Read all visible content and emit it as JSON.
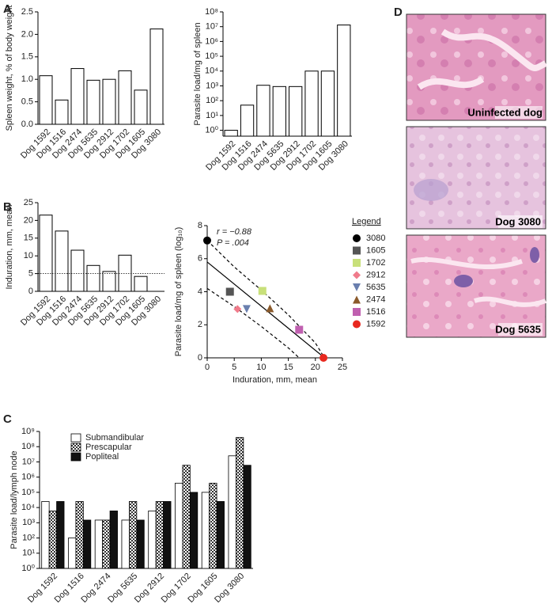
{
  "panel_labels": [
    "A",
    "B",
    "C",
    "D"
  ],
  "images": [
    {
      "caption": "Uninfected  dog"
    },
    {
      "caption": "Dog 3080"
    },
    {
      "caption": "Dog 5635"
    }
  ],
  "chart_data": [
    {
      "type": "bar",
      "ylabel": "Spleen weight, % of body weight",
      "categories": [
        "Dog 1592",
        "Dog 1516",
        "Dog 2474",
        "Dog 5635",
        "Dog 2912",
        "Dog 1702",
        "Dog 1605",
        "Dog 3080"
      ],
      "values": [
        1.08,
        0.54,
        1.24,
        0.98,
        1.0,
        1.19,
        0.76,
        2.12
      ],
      "color": "#ffffff",
      "ylim": [
        0,
        2.5
      ],
      "yticks": [
        {
          "value": 0,
          "label": "0.0"
        },
        0.5,
        {
          "value": 1,
          "label": "1.0"
        },
        1.5,
        {
          "value": 2,
          "label": "2.0"
        },
        2.5
      ]
    },
    {
      "type": "bar",
      "ylabel": "Parasite load/mg of spleen",
      "ylog": true,
      "categories": [
        "Dog 1592",
        "Dog 1516",
        "Dog 2474",
        "Dog 5635",
        "Dog 2912",
        "Dog 1702",
        "Dog 1605",
        "Dog 3080"
      ],
      "values": [
        1,
        50,
        1100,
        900,
        900,
        10000,
        10000,
        13000000
      ],
      "color": "#ffffff",
      "ylim": [
        0.4,
        100000000
      ],
      "yticks": [
        {
          "value": 1,
          "label": "10⁰"
        },
        {
          "value": 10,
          "label": "10¹"
        },
        {
          "value": 100,
          "label": "10²"
        },
        {
          "value": 1000,
          "label": "10³"
        },
        {
          "value": 10000,
          "label": "10⁴"
        },
        {
          "value": 100000,
          "label": "10⁵"
        },
        {
          "value": 1000000,
          "label": "10⁶"
        },
        {
          "value": 10000000,
          "label": "10⁷"
        },
        {
          "value": 100000000,
          "label": "10⁸"
        }
      ]
    },
    {
      "type": "bar",
      "ylabel": "Induration, mm, mean",
      "categories": [
        "Dog 1592",
        "Dog 1516",
        "Dog 2474",
        "Dog 5635",
        "Dog 2912",
        "Dog 1702",
        "Dog 1605",
        "Dog 3080"
      ],
      "values": [
        21.5,
        17,
        11.6,
        7.3,
        5.6,
        10.2,
        4.2,
        0
      ],
      "color": "#ffffff",
      "ylim": [
        0,
        25
      ],
      "yticks": [
        0,
        5,
        10,
        15,
        20,
        25
      ],
      "reference_line": 5
    },
    {
      "type": "scatter",
      "ylabel": "Parasite load/mg of spleen (log₁₀)",
      "xlabel": "Induration, mm, mean",
      "legend_title": "Legend",
      "annotations": [
        "r = −0.88",
        "P = .004"
      ],
      "xlim": [
        0,
        25
      ],
      "xticks": [
        0,
        5,
        10,
        15,
        20,
        25
      ],
      "ylim": [
        0,
        8
      ],
      "yticks": [
        0,
        2,
        4,
        6,
        8
      ],
      "series": [
        {
          "name": "3080",
          "color": "#000000",
          "marker": "circle",
          "x": [
            0
          ],
          "values": [
            7.1
          ]
        },
        {
          "name": "1605",
          "color": "#555555",
          "marker": "square",
          "x": [
            4.2
          ],
          "values": [
            4.0
          ]
        },
        {
          "name": "1702",
          "color": "#c8e07a",
          "marker": "square",
          "x": [
            10.2
          ],
          "values": [
            4.05
          ]
        },
        {
          "name": "2912",
          "color": "#f07b8b",
          "marker": "diamond",
          "x": [
            5.6
          ],
          "values": [
            2.95
          ]
        },
        {
          "name": "5635",
          "color": "#6a7fae",
          "marker": "triangle-down",
          "x": [
            7.3
          ],
          "values": [
            2.95
          ]
        },
        {
          "name": "2474",
          "color": "#8b5a2b",
          "marker": "triangle-up",
          "x": [
            11.6
          ],
          "values": [
            3.0
          ]
        },
        {
          "name": "1516",
          "color": "#c060b0",
          "marker": "square",
          "x": [
            17
          ],
          "values": [
            1.7
          ]
        },
        {
          "name": "1592",
          "color": "#e8281f",
          "marker": "circle",
          "x": [
            21.5
          ],
          "values": [
            0
          ]
        }
      ],
      "lines": [
        {
          "style": "solid",
          "x": [
            0,
            21.7
          ],
          "values": [
            5.8,
            0
          ]
        },
        {
          "style": "dashed",
          "x": [
            0,
            5,
            10,
            15,
            20,
            21.3
          ],
          "values": [
            7.1,
            5.5,
            4.1,
            2.6,
            0.9,
            0.2
          ]
        },
        {
          "style": "dashed",
          "x": [
            0,
            5,
            10,
            15,
            17
          ],
          "values": [
            4.2,
            3.1,
            1.9,
            0.6,
            0
          ]
        }
      ]
    },
    {
      "type": "bar",
      "ylabel": "Parasite load/lymph node",
      "ylog": true,
      "categories": [
        "Dog 1592",
        "Dog 1516",
        "Dog 2474",
        "Dog 5635",
        "Dog 2912",
        "Dog 1702",
        "Dog 1605",
        "Dog 3080"
      ],
      "ylim": [
        1,
        1000000000
      ],
      "yticks": [
        {
          "value": 1,
          "label": "10⁰"
        },
        {
          "value": 10,
          "label": "10¹"
        },
        {
          "value": 100,
          "label": "10²"
        },
        {
          "value": 1000,
          "label": "10³"
        },
        {
          "value": 10000,
          "label": "10⁴"
        },
        {
          "value": 100000,
          "label": "10⁵"
        },
        {
          "value": 1000000,
          "label": "10⁶"
        },
        {
          "value": 10000000,
          "label": "10⁷"
        },
        {
          "value": 100000000,
          "label": "10⁸"
        },
        {
          "value": 1000000000,
          "label": "10⁹"
        }
      ],
      "series": [
        {
          "name": "Submandibular",
          "color": "#ffffff",
          "values": [
            25000,
            100,
            1500,
            1500,
            6000,
            400000,
            100000,
            25000000
          ]
        },
        {
          "name": "Prescapular",
          "color": "#888888",
          "pattern": "checkered",
          "values": [
            6000,
            25000,
            1500,
            25000,
            25000,
            6000000,
            400000,
            400000000
          ]
        },
        {
          "name": "Popliteal",
          "color": "#111111",
          "values": [
            25000,
            1500,
            6000,
            1500,
            25000,
            100000,
            25000,
            6000000
          ]
        }
      ]
    }
  ]
}
